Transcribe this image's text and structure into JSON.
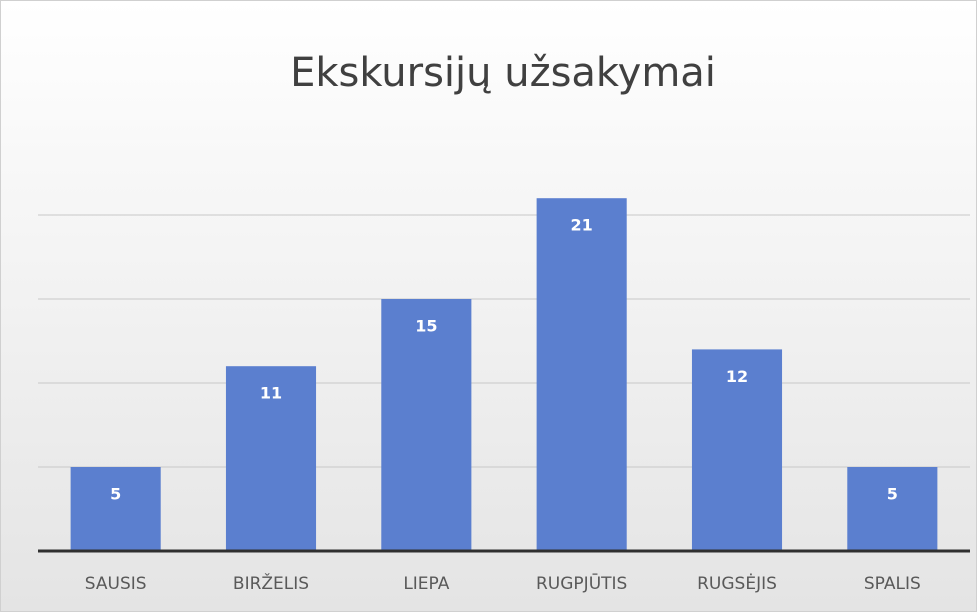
{
  "chart_data": {
    "type": "bar",
    "title": "Ekskursijų užsakymai",
    "categories": [
      "SAUSIS",
      "BIRŽELIS",
      "LIEPA",
      "RUGPJŪTIS",
      "RUGSĖJIS",
      "SPALIS"
    ],
    "values": [
      5,
      11,
      15,
      21,
      12,
      5
    ],
    "color": "#5b7fcf",
    "ylim": [
      0,
      25
    ],
    "yticks": [
      0,
      5,
      10,
      15,
      20
    ],
    "grid": true,
    "ytick_labels": false,
    "data_labels": true
  }
}
